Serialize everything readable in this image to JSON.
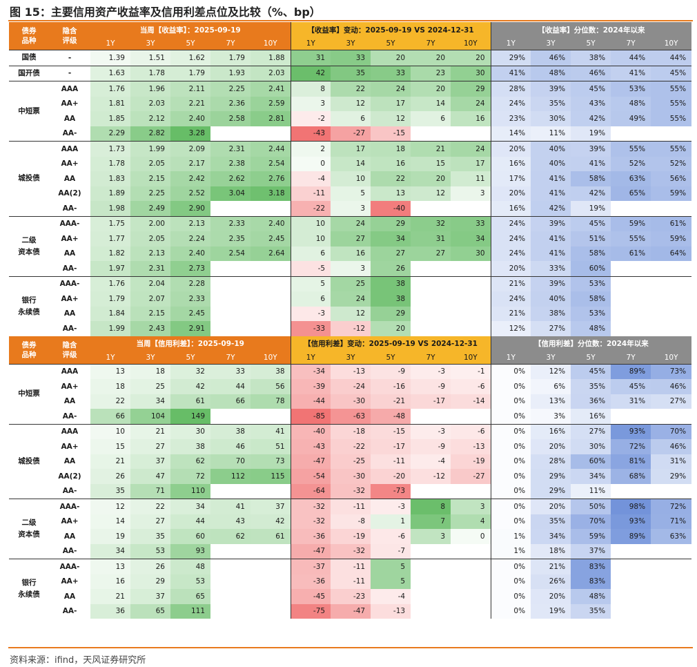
{
  "title": "图 15：主要信用资产收益率及信用利差点位及比较（%、bp）",
  "source": "资料来源：ifind，天风证券研究所",
  "colors": {
    "orange": "#e87a1d",
    "amber": "#f6b629",
    "gray": "#8c8c8c",
    "green_max": "#5cb85c",
    "red_max": "#f06d6d",
    "blue_max": "#6d8fd9"
  },
  "header_cols": [
    "1Y",
    "3Y",
    "5Y",
    "7Y",
    "10Y"
  ],
  "section1": {
    "bond_label": "债券\n品种",
    "rating_label": "隐含\n评级",
    "g1_title": "当周【收益率】：2025-09-19",
    "g2_title": "【收益率】变动：2025-09-19 VS 2024-12-31",
    "g3_title": "【收益率】分位数：2024年以来",
    "groups": [
      {
        "type": "国债",
        "rows": [
          {
            "r": "-",
            "y": [
              "1.39",
              "1.51",
              "1.62",
              "1.79",
              "1.88"
            ],
            "d": [
              "31",
              "33",
              "20",
              "20",
              "20"
            ],
            "p": [
              "29%",
              "46%",
              "38%",
              "44%",
              "44%"
            ]
          }
        ]
      },
      {
        "type": "国开债",
        "rows": [
          {
            "r": "-",
            "y": [
              "1.63",
              "1.78",
              "1.79",
              "1.93",
              "2.03"
            ],
            "d": [
              "42",
              "35",
              "33",
              "23",
              "30"
            ],
            "p": [
              "41%",
              "48%",
              "46%",
              "41%",
              "45%"
            ]
          }
        ]
      },
      {
        "type": "中短票",
        "rows": [
          {
            "r": "AAA",
            "y": [
              "1.76",
              "1.96",
              "2.11",
              "2.25",
              "2.41"
            ],
            "d": [
              "8",
              "22",
              "24",
              "20",
              "29"
            ],
            "p": [
              "28%",
              "39%",
              "45%",
              "53%",
              "55%"
            ]
          },
          {
            "r": "AA+",
            "y": [
              "1.81",
              "2.03",
              "2.21",
              "2.36",
              "2.59"
            ],
            "d": [
              "3",
              "12",
              "17",
              "14",
              "24"
            ],
            "p": [
              "24%",
              "35%",
              "43%",
              "48%",
              "55%"
            ]
          },
          {
            "r": "AA",
            "y": [
              "1.85",
              "2.12",
              "2.40",
              "2.58",
              "2.81"
            ],
            "d": [
              "-2",
              "6",
              "12",
              "6",
              "16"
            ],
            "p": [
              "23%",
              "30%",
              "42%",
              "49%",
              "55%"
            ]
          },
          {
            "r": "AA-",
            "y": [
              "2.29",
              "2.82",
              "3.28",
              "",
              ""
            ],
            "d": [
              "-43",
              "-27",
              "-15",
              "",
              ""
            ],
            "p": [
              "14%",
              "11%",
              "19%",
              "",
              ""
            ]
          }
        ]
      },
      {
        "type": "城投债",
        "rows": [
          {
            "r": "AAA",
            "y": [
              "1.73",
              "1.99",
              "2.09",
              "2.31",
              "2.44"
            ],
            "d": [
              "2",
              "17",
              "18",
              "21",
              "24"
            ],
            "p": [
              "20%",
              "40%",
              "39%",
              "55%",
              "55%"
            ]
          },
          {
            "r": "AA+",
            "y": [
              "1.78",
              "2.05",
              "2.17",
              "2.38",
              "2.54"
            ],
            "d": [
              "0",
              "14",
              "16",
              "15",
              "17"
            ],
            "p": [
              "16%",
              "40%",
              "41%",
              "52%",
              "52%"
            ]
          },
          {
            "r": "AA",
            "y": [
              "1.83",
              "2.15",
              "2.42",
              "2.62",
              "2.76"
            ],
            "d": [
              "-4",
              "10",
              "22",
              "20",
              "11"
            ],
            "p": [
              "17%",
              "41%",
              "58%",
              "63%",
              "56%"
            ]
          },
          {
            "r": "AA(2)",
            "y": [
              "1.89",
              "2.25",
              "2.52",
              "3.04",
              "3.18"
            ],
            "d": [
              "-11",
              "5",
              "13",
              "12",
              "3"
            ],
            "p": [
              "20%",
              "41%",
              "42%",
              "65%",
              "59%"
            ]
          },
          {
            "r": "AA-",
            "y": [
              "1.98",
              "2.49",
              "2.90",
              "",
              ""
            ],
            "d": [
              "-22",
              "3",
              "-40",
              "",
              ""
            ],
            "p": [
              "16%",
              "42%",
              "19%",
              "",
              ""
            ]
          }
        ]
      },
      {
        "type": "二级\n资本债",
        "rows": [
          {
            "r": "AAA-",
            "y": [
              "1.75",
              "2.00",
              "2.13",
              "2.33",
              "2.40"
            ],
            "d": [
              "10",
              "24",
              "29",
              "32",
              "33"
            ],
            "p": [
              "24%",
              "39%",
              "45%",
              "59%",
              "61%"
            ]
          },
          {
            "r": "AA+",
            "y": [
              "1.77",
              "2.05",
              "2.24",
              "2.35",
              "2.45"
            ],
            "d": [
              "10",
              "27",
              "34",
              "31",
              "34"
            ],
            "p": [
              "24%",
              "41%",
              "51%",
              "55%",
              "59%"
            ]
          },
          {
            "r": "AA",
            "y": [
              "1.82",
              "2.13",
              "2.40",
              "2.54",
              "2.64"
            ],
            "d": [
              "6",
              "16",
              "27",
              "27",
              "30"
            ],
            "p": [
              "24%",
              "41%",
              "58%",
              "61%",
              "64%"
            ]
          },
          {
            "r": "AA-",
            "y": [
              "1.97",
              "2.31",
              "2.73",
              "",
              ""
            ],
            "d": [
              "-5",
              "3",
              "26",
              "",
              ""
            ],
            "p": [
              "20%",
              "33%",
              "60%",
              "",
              ""
            ]
          }
        ]
      },
      {
        "type": "银行\n永续债",
        "rows": [
          {
            "r": "AAA-",
            "y": [
              "1.76",
              "2.04",
              "2.28",
              "",
              ""
            ],
            "d": [
              "5",
              "25",
              "38",
              "",
              ""
            ],
            "p": [
              "21%",
              "39%",
              "53%",
              "",
              ""
            ]
          },
          {
            "r": "AA+",
            "y": [
              "1.79",
              "2.07",
              "2.33",
              "",
              ""
            ],
            "d": [
              "6",
              "24",
              "38",
              "",
              ""
            ],
            "p": [
              "24%",
              "40%",
              "58%",
              "",
              ""
            ]
          },
          {
            "r": "AA",
            "y": [
              "1.84",
              "2.15",
              "2.45",
              "",
              ""
            ],
            "d": [
              "-3",
              "12",
              "29",
              "",
              ""
            ],
            "p": [
              "21%",
              "38%",
              "53%",
              "",
              ""
            ]
          },
          {
            "r": "AA-",
            "y": [
              "1.99",
              "2.43",
              "2.91",
              "",
              ""
            ],
            "d": [
              "-33",
              "-12",
              "20",
              "",
              ""
            ],
            "p": [
              "12%",
              "27%",
              "48%",
              "",
              ""
            ]
          }
        ]
      }
    ]
  },
  "section2": {
    "bond_label": "债券\n品种",
    "rating_label": "隐含\n评级",
    "g1_title": "当周【信用利差】：2025-09-19",
    "g2_title": "【信用利差】变动：2025-09-19 VS 2024-12-31",
    "g3_title": "【信用利差】分位数：2024年以来",
    "groups": [
      {
        "type": "中短票",
        "rows": [
          {
            "r": "AAA",
            "y": [
              "13",
              "18",
              "32",
              "33",
              "38"
            ],
            "d": [
              "-34",
              "-13",
              "-9",
              "-3",
              "-1"
            ],
            "p": [
              "0%",
              "12%",
              "45%",
              "89%",
              "73%"
            ]
          },
          {
            "r": "AA+",
            "y": [
              "18",
              "25",
              "42",
              "44",
              "56"
            ],
            "d": [
              "-39",
              "-24",
              "-16",
              "-9",
              "-6"
            ],
            "p": [
              "0%",
              "6%",
              "35%",
              "45%",
              "46%"
            ]
          },
          {
            "r": "AA",
            "y": [
              "22",
              "34",
              "61",
              "66",
              "78"
            ],
            "d": [
              "-44",
              "-30",
              "-21",
              "-17",
              "-14"
            ],
            "p": [
              "0%",
              "13%",
              "36%",
              "31%",
              "27%"
            ]
          },
          {
            "r": "AA-",
            "y": [
              "66",
              "104",
              "149",
              "",
              ""
            ],
            "d": [
              "-85",
              "-63",
              "-48",
              "",
              ""
            ],
            "p": [
              "0%",
              "3%",
              "16%",
              "",
              ""
            ]
          }
        ]
      },
      {
        "type": "城投债",
        "rows": [
          {
            "r": "AAA",
            "y": [
              "10",
              "21",
              "30",
              "38",
              "41"
            ],
            "d": [
              "-40",
              "-18",
              "-15",
              "-3",
              "-6"
            ],
            "p": [
              "0%",
              "16%",
              "27%",
              "93%",
              "70%"
            ]
          },
          {
            "r": "AA+",
            "y": [
              "15",
              "27",
              "38",
              "46",
              "51"
            ],
            "d": [
              "-43",
              "-22",
              "-17",
              "-9",
              "-13"
            ],
            "p": [
              "0%",
              "20%",
              "30%",
              "72%",
              "46%"
            ]
          },
          {
            "r": "AA",
            "y": [
              "21",
              "37",
              "62",
              "70",
              "73"
            ],
            "d": [
              "-47",
              "-25",
              "-11",
              "-4",
              "-19"
            ],
            "p": [
              "0%",
              "28%",
              "60%",
              "81%",
              "31%"
            ]
          },
          {
            "r": "AA(2)",
            "y": [
              "26",
              "47",
              "72",
              "112",
              "115"
            ],
            "d": [
              "-54",
              "-30",
              "-20",
              "-12",
              "-27"
            ],
            "p": [
              "0%",
              "29%",
              "34%",
              "68%",
              "29%"
            ]
          },
          {
            "r": "AA-",
            "y": [
              "35",
              "71",
              "110",
              "",
              ""
            ],
            "d": [
              "-64",
              "-32",
              "-73",
              "",
              ""
            ],
            "p": [
              "0%",
              "29%",
              "11%",
              "",
              ""
            ]
          }
        ]
      },
      {
        "type": "二级\n资本债",
        "rows": [
          {
            "r": "AAA-",
            "y": [
              "12",
              "22",
              "34",
              "41",
              "37"
            ],
            "d": [
              "-32",
              "-11",
              "-3",
              "8",
              "3"
            ],
            "p": [
              "0%",
              "20%",
              "50%",
              "98%",
              "72%"
            ]
          },
          {
            "r": "AA+",
            "y": [
              "14",
              "27",
              "44",
              "43",
              "42"
            ],
            "d": [
              "-32",
              "-8",
              "1",
              "7",
              "4"
            ],
            "p": [
              "0%",
              "35%",
              "70%",
              "93%",
              "71%"
            ]
          },
          {
            "r": "AA",
            "y": [
              "19",
              "35",
              "60",
              "62",
              "61"
            ],
            "d": [
              "-36",
              "-19",
              "-6",
              "3",
              "0"
            ],
            "p": [
              "1%",
              "34%",
              "59%",
              "89%",
              "63%"
            ]
          },
          {
            "r": "AA-",
            "y": [
              "34",
              "53",
              "93",
              "",
              ""
            ],
            "d": [
              "-47",
              "-32",
              "-7",
              "",
              ""
            ],
            "p": [
              "1%",
              "18%",
              "37%",
              "",
              ""
            ]
          }
        ]
      },
      {
        "type": "银行\n永续债",
        "rows": [
          {
            "r": "AAA-",
            "y": [
              "13",
              "26",
              "48",
              "",
              ""
            ],
            "d": [
              "-37",
              "-11",
              "5",
              "",
              ""
            ],
            "p": [
              "0%",
              "21%",
              "83%",
              "",
              ""
            ]
          },
          {
            "r": "AA+",
            "y": [
              "16",
              "29",
              "53",
              "",
              ""
            ],
            "d": [
              "-36",
              "-11",
              "5",
              "",
              ""
            ],
            "p": [
              "0%",
              "26%",
              "83%",
              "",
              ""
            ]
          },
          {
            "r": "AA",
            "y": [
              "21",
              "37",
              "65",
              "",
              ""
            ],
            "d": [
              "-45",
              "-23",
              "-4",
              "",
              ""
            ],
            "p": [
              "0%",
              "20%",
              "48%",
              "",
              ""
            ]
          },
          {
            "r": "AA-",
            "y": [
              "36",
              "65",
              "111",
              "",
              ""
            ],
            "d": [
              "-75",
              "-47",
              "-13",
              "",
              ""
            ],
            "p": [
              "0%",
              "19%",
              "35%",
              "",
              ""
            ]
          }
        ]
      }
    ]
  }
}
